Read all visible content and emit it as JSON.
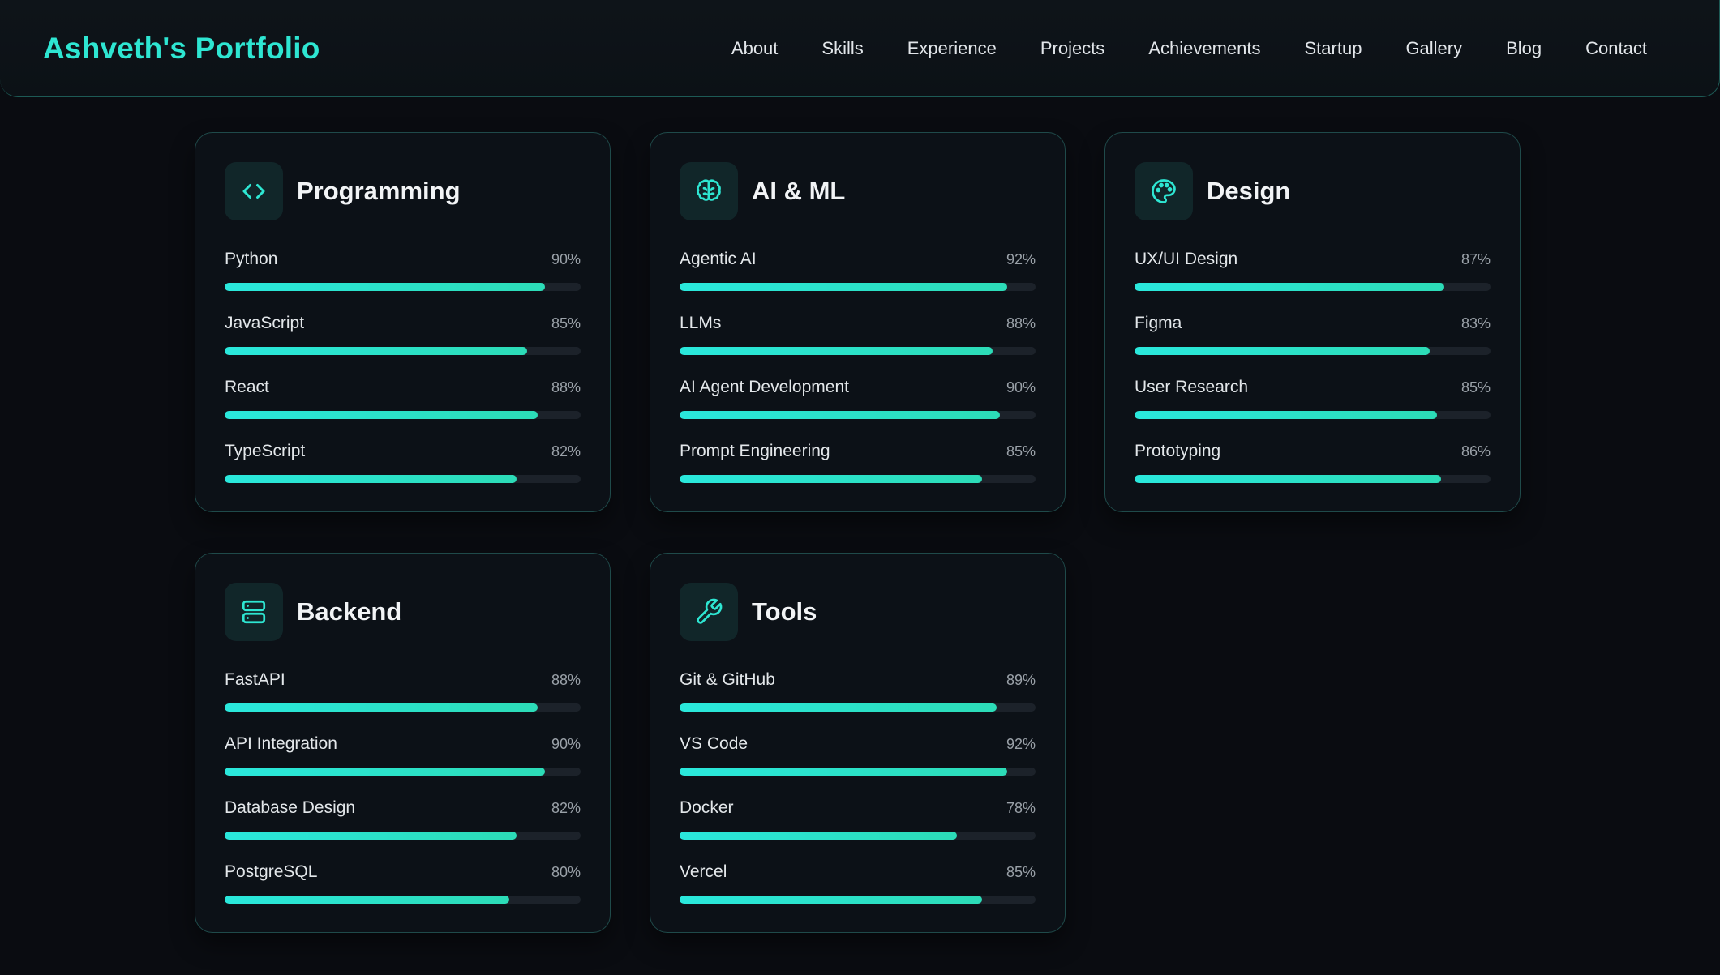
{
  "brand": "Ashveth's Portfolio",
  "nav": [
    "About",
    "Skills",
    "Experience",
    "Projects",
    "Achievements",
    "Startup",
    "Gallery",
    "Blog",
    "Contact"
  ],
  "colors": {
    "accent": "#2ee6d2",
    "background": "#0a0c11",
    "card": "#0c1117",
    "track": "#1c222a"
  },
  "categories": [
    {
      "title": "Programming",
      "icon": "code-icon",
      "skills": [
        {
          "name": "Python",
          "pct": "90%",
          "value": 90
        },
        {
          "name": "JavaScript",
          "pct": "85%",
          "value": 85
        },
        {
          "name": "React",
          "pct": "88%",
          "value": 88
        },
        {
          "name": "TypeScript",
          "pct": "82%",
          "value": 82
        }
      ]
    },
    {
      "title": "AI & ML",
      "icon": "brain-icon",
      "skills": [
        {
          "name": "Agentic AI",
          "pct": "92%",
          "value": 92
        },
        {
          "name": "LLMs",
          "pct": "88%",
          "value": 88
        },
        {
          "name": "AI Agent Development",
          "pct": "90%",
          "value": 90
        },
        {
          "name": "Prompt Engineering",
          "pct": "85%",
          "value": 85
        }
      ]
    },
    {
      "title": "Design",
      "icon": "palette-icon",
      "skills": [
        {
          "name": "UX/UI Design",
          "pct": "87%",
          "value": 87
        },
        {
          "name": "Figma",
          "pct": "83%",
          "value": 83
        },
        {
          "name": "User Research",
          "pct": "85%",
          "value": 85
        },
        {
          "name": "Prototyping",
          "pct": "86%",
          "value": 86
        }
      ]
    },
    {
      "title": "Backend",
      "icon": "server-icon",
      "skills": [
        {
          "name": "FastAPI",
          "pct": "88%",
          "value": 88
        },
        {
          "name": "API Integration",
          "pct": "90%",
          "value": 90
        },
        {
          "name": "Database Design",
          "pct": "82%",
          "value": 82
        },
        {
          "name": "PostgreSQL",
          "pct": "80%",
          "value": 80
        }
      ]
    },
    {
      "title": "Tools",
      "icon": "wrench-icon",
      "skills": [
        {
          "name": "Git & GitHub",
          "pct": "89%",
          "value": 89
        },
        {
          "name": "VS Code",
          "pct": "92%",
          "value": 92
        },
        {
          "name": "Docker",
          "pct": "78%",
          "value": 78
        },
        {
          "name": "Vercel",
          "pct": "85%",
          "value": 85
        }
      ]
    }
  ]
}
